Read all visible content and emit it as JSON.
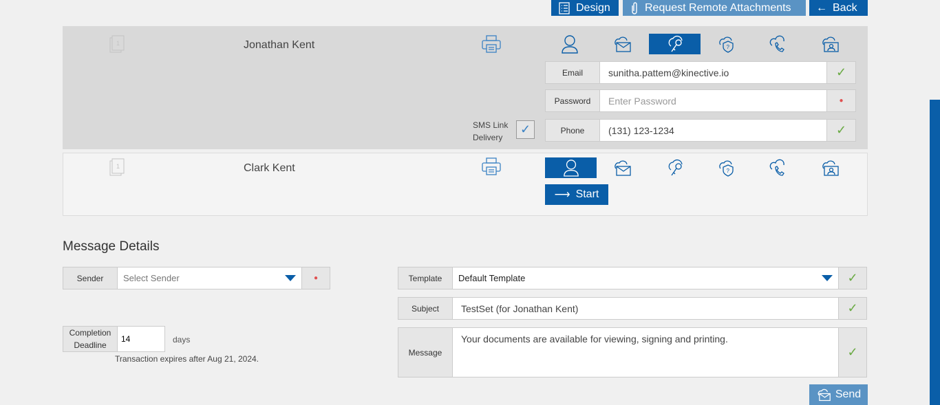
{
  "toolbar": {
    "design": "Design",
    "request": "Request Remote Attachments",
    "back": "Back"
  },
  "signers": [
    {
      "name": "Jonathan Kent",
      "doc_badge": "1",
      "email_label": "Email",
      "email": "sunitha.pattem@kinective.io",
      "password_label": "Password",
      "password_placeholder": "Enter Password",
      "phone_label": "Phone",
      "phone": "(131) 123-1234",
      "sms_label_1": "SMS Link",
      "sms_label_2": "Delivery",
      "sms_checked": true,
      "active_method": "password-key"
    },
    {
      "name": "Clark Kent",
      "doc_badge": "1",
      "start": "Start",
      "active_method": "in-person-user"
    }
  ],
  "methods": [
    "user-icon",
    "cloud-email-icon",
    "cloud-key-icon",
    "cloud-shield-question-icon",
    "cloud-phone-icon",
    "cloud-id-card-icon"
  ],
  "message": {
    "heading": "Message Details",
    "sender_label": "Sender",
    "sender_placeholder": "Select Sender",
    "template_label": "Template",
    "template": "Default Template",
    "subject_label": "Subject",
    "subject": "TestSet (for Jonathan Kent)",
    "message_label": "Message",
    "message": "Your documents are available for viewing, signing and printing.",
    "deadline_label_1": "Completion",
    "deadline_label_2": "Deadline",
    "deadline": "14",
    "days": "days",
    "expires": "Transaction expires after Aug 21, 2024.",
    "send": "Send"
  },
  "colors": {
    "primary": "#0a5ea8",
    "secondary": "#5a93c4",
    "ok": "#6aaa44",
    "required": "#e05050"
  }
}
